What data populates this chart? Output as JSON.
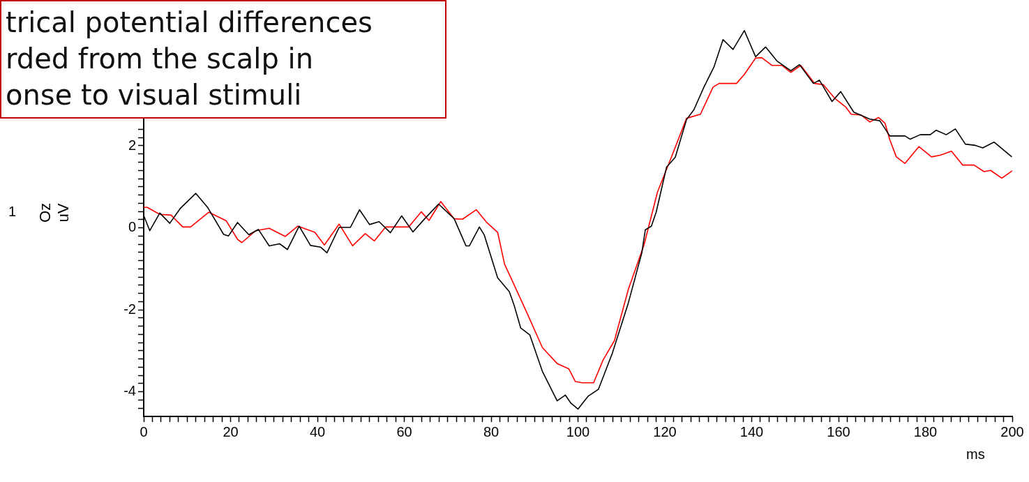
{
  "chart_data": {
    "type": "line",
    "xlabel": "ms",
    "ylabel": "Oz\nuV",
    "annotations": [
      "trical potential differences\nrded from the scalp in\nonse to visual stimuli",
      "1"
    ],
    "xlim": [
      0,
      200
    ],
    "ylim": [
      -4.6,
      5.3
    ],
    "grid": false,
    "legend": false,
    "marker": "none",
    "xticks": [
      0,
      {
        "value": 2,
        "label": null
      },
      {
        "value": 4,
        "label": null
      },
      {
        "value": 6,
        "label": null
      },
      {
        "value": 8,
        "label": null
      },
      {
        "value": 10,
        "label": null
      },
      {
        "value": 12,
        "label": null
      },
      {
        "value": 14,
        "label": null
      },
      {
        "value": 16,
        "label": null
      },
      {
        "value": 18,
        "label": null
      },
      20,
      {
        "value": 22,
        "label": null
      },
      {
        "value": 24,
        "label": null
      },
      {
        "value": 26,
        "label": null
      },
      {
        "value": 28,
        "label": null
      },
      {
        "value": 30,
        "label": null
      },
      {
        "value": 32,
        "label": null
      },
      {
        "value": 34,
        "label": null
      },
      {
        "value": 36,
        "label": null
      },
      {
        "value": 38,
        "label": null
      },
      40,
      {
        "value": 42,
        "label": null
      },
      {
        "value": 44,
        "label": null
      },
      {
        "value": 46,
        "label": null
      },
      {
        "value": 48,
        "label": null
      },
      {
        "value": 50,
        "label": null
      },
      {
        "value": 52,
        "label": null
      },
      {
        "value": 54,
        "label": null
      },
      {
        "value": 56,
        "label": null
      },
      {
        "value": 58,
        "label": null
      },
      60,
      {
        "value": 62,
        "label": null
      },
      {
        "value": 64,
        "label": null
      },
      {
        "value": 66,
        "label": null
      },
      {
        "value": 68,
        "label": null
      },
      {
        "value": 70,
        "label": null
      },
      {
        "value": 72,
        "label": null
      },
      {
        "value": 74,
        "label": null
      },
      {
        "value": 76,
        "label": null
      },
      {
        "value": 78,
        "label": null
      },
      80,
      {
        "value": 82,
        "label": null
      },
      {
        "value": 84,
        "label": null
      },
      {
        "value": 86,
        "label": null
      },
      {
        "value": 88,
        "label": null
      },
      {
        "value": 90,
        "label": null
      },
      {
        "value": 92,
        "label": null
      },
      {
        "value": 94,
        "label": null
      },
      {
        "value": 96,
        "label": null
      },
      {
        "value": 98,
        "label": null
      },
      100,
      {
        "value": 102,
        "label": null
      },
      {
        "value": 104,
        "label": null
      },
      {
        "value": 106,
        "label": null
      },
      {
        "value": 108,
        "label": null
      },
      {
        "value": 110,
        "label": null
      },
      {
        "value": 112,
        "label": null
      },
      {
        "value": 114,
        "label": null
      },
      {
        "value": 116,
        "label": null
      },
      {
        "value": 118,
        "label": null
      },
      120,
      {
        "value": 122,
        "label": null
      },
      {
        "value": 124,
        "label": null
      },
      {
        "value": 126,
        "label": null
      },
      {
        "value": 128,
        "label": null
      },
      {
        "value": 130,
        "label": null
      },
      {
        "value": 132,
        "label": null
      },
      {
        "value": 134,
        "label": null
      },
      {
        "value": 136,
        "label": null
      },
      {
        "value": 138,
        "label": null
      },
      140,
      {
        "value": 142,
        "label": null
      },
      {
        "value": 144,
        "label": null
      },
      {
        "value": 146,
        "label": null
      },
      {
        "value": 148,
        "label": null
      },
      {
        "value": 150,
        "label": null
      },
      {
        "value": 152,
        "label": null
      },
      {
        "value": 154,
        "label": null
      },
      {
        "value": 156,
        "label": null
      },
      {
        "value": 158,
        "label": null
      },
      160,
      {
        "value": 162,
        "label": null
      },
      {
        "value": 164,
        "label": null
      },
      {
        "value": 166,
        "label": null
      },
      {
        "value": 168,
        "label": null
      },
      {
        "value": 170,
        "label": null
      },
      {
        "value": 172,
        "label": null
      },
      {
        "value": 174,
        "label": null
      },
      {
        "value": 176,
        "label": null
      },
      {
        "value": 178,
        "label": null
      },
      180,
      {
        "value": 182,
        "label": null
      },
      {
        "value": 184,
        "label": null
      },
      {
        "value": 186,
        "label": null
      },
      {
        "value": 188,
        "label": null
      },
      {
        "value": 190,
        "label": null
      },
      {
        "value": 192,
        "label": null
      },
      {
        "value": 194,
        "label": null
      },
      {
        "value": 196,
        "label": null
      },
      {
        "value": 198,
        "label": null
      },
      200
    ],
    "yticks": [
      {
        "value": -4.4,
        "label": null
      },
      {
        "value": -4.2,
        "label": null
      },
      -4,
      {
        "value": -3.8,
        "label": null
      },
      {
        "value": -3.6,
        "label": null
      },
      {
        "value": -3.4,
        "label": null
      },
      {
        "value": -3.2,
        "label": null
      },
      {
        "value": -3,
        "label": null
      },
      {
        "value": -2.8,
        "label": null
      },
      {
        "value": -2.6,
        "label": null
      },
      {
        "value": -2.4,
        "label": null
      },
      {
        "value": -2.2,
        "label": null
      },
      -2,
      {
        "value": -1.8,
        "label": null
      },
      {
        "value": -1.6,
        "label": null
      },
      {
        "value": -1.4,
        "label": null
      },
      {
        "value": -1.2,
        "label": null
      },
      {
        "value": -1,
        "label": null
      },
      {
        "value": -0.8,
        "label": null
      },
      {
        "value": -0.6,
        "label": null
      },
      {
        "value": -0.4,
        "label": null
      },
      {
        "value": -0.2,
        "label": null
      },
      0,
      {
        "value": 0.2,
        "label": null
      },
      {
        "value": 0.4,
        "label": null
      },
      {
        "value": 0.6,
        "label": null
      },
      {
        "value": 0.8,
        "label": null
      },
      {
        "value": 1,
        "label": null
      },
      {
        "value": 1.2,
        "label": null
      },
      {
        "value": 1.4,
        "label": null
      },
      {
        "value": 1.6,
        "label": null
      },
      {
        "value": 1.8,
        "label": null
      },
      2,
      {
        "value": 2.2,
        "label": null
      },
      {
        "value": 2.4,
        "label": null
      }
    ],
    "series": [
      {
        "color": "#000000",
        "x": [
          0,
          1.4,
          3.7,
          6,
          8.4,
          12,
          14.7,
          18.4,
          19.5,
          21.6,
          24.2,
          26.4,
          28.9,
          31.3,
          33.1,
          35.8,
          38.4,
          40.7,
          42.2,
          45,
          47.6,
          49.7,
          52,
          54.2,
          56.8,
          59.4,
          62,
          64.7,
          67.9,
          71.5,
          74.2,
          75,
          77.3,
          78.4,
          81.5,
          84.2,
          85.3,
          86.8,
          88.9,
          91.8,
          95.2,
          97.1,
          98.4,
          100,
          102.3,
          104.7,
          107.9,
          111.6,
          114.7,
          115.5,
          116.9,
          118,
          120.4,
          122.4,
          125,
          126.7,
          129,
          131.3,
          133.4,
          135.7,
          138.3,
          140.9,
          143.2,
          145.8,
          149,
          151,
          154.2,
          155.6,
          158.5,
          160.5,
          163.5,
          167.2,
          169.5,
          171.8,
          175.3,
          176.5,
          178.8,
          181.1,
          182.5,
          184.8,
          186.9,
          189.2,
          191.5,
          193.2,
          195.8,
          199.9
        ],
        "values": [
          0.3,
          -0.07,
          0.36,
          0.11,
          0.47,
          0.84,
          0.5,
          -0.16,
          -0.2,
          0.13,
          -0.17,
          -0.04,
          -0.44,
          -0.39,
          -0.53,
          0.04,
          -0.43,
          -0.47,
          -0.61,
          0.01,
          0.01,
          0.44,
          0.08,
          0.15,
          -0.12,
          0.29,
          -0.1,
          0.22,
          0.58,
          0.22,
          -0.44,
          -0.44,
          0.02,
          -0.17,
          -1.22,
          -1.56,
          -1.89,
          -2.44,
          -2.61,
          -3.5,
          -4.22,
          -4.08,
          -4.28,
          -4.42,
          -4.11,
          -3.94,
          -3.06,
          -1.83,
          -0.61,
          -0.05,
          0.04,
          0.38,
          1.48,
          1.72,
          2.64,
          2.88,
          3.43,
          3.92,
          4.59,
          4.35,
          4.81,
          4.17,
          4.41,
          4.07,
          3.83,
          3.98,
          3.52,
          3.6,
          3.08,
          3.32,
          2.82,
          2.65,
          2.61,
          2.24,
          2.24,
          2.16,
          2.27,
          2.27,
          2.38,
          2.27,
          2.41,
          2.04,
          2.01,
          1.95,
          2.09,
          1.73
        ]
      },
      {
        "color": "#ff0000",
        "x": [
          0,
          0.8,
          3.7,
          6.3,
          9,
          10.8,
          15,
          19,
          21.6,
          22.6,
          25.8,
          28.9,
          32.6,
          35.5,
          39.4,
          41.6,
          45,
          48.1,
          51,
          53.1,
          55.7,
          61,
          63.9,
          65.7,
          68.4,
          71.5,
          73.4,
          76.6,
          78.9,
          81.5,
          83.1,
          85.3,
          88.4,
          91.8,
          95.2,
          97.9,
          99.4,
          101,
          103.6,
          105.8,
          108.4,
          111.6,
          115.2,
          118.3,
          121.5,
          125,
          128.2,
          131.1,
          132.5,
          136.5,
          138.3,
          140.9,
          142.3,
          144.7,
          147,
          149,
          151.3,
          154.5,
          156.5,
          159.1,
          161.7,
          162.9,
          165.2,
          167.2,
          169.2,
          170.7,
          171.8,
          173.3,
          175.3,
          178.5,
          181.4,
          183.4,
          186,
          188.6,
          191.2,
          193.5,
          195,
          197.6,
          200
        ],
        "values": [
          0.5,
          0.5,
          0.33,
          0.31,
          0.02,
          0.02,
          0.38,
          0.17,
          -0.28,
          -0.36,
          -0.07,
          -0.01,
          -0.21,
          0.04,
          -0.11,
          -0.42,
          0.09,
          -0.44,
          -0.14,
          -0.32,
          0.02,
          0.02,
          0.39,
          0.18,
          0.64,
          0.22,
          0.21,
          0.44,
          0.14,
          -0.11,
          -0.89,
          -1.39,
          -2.11,
          -2.92,
          -3.31,
          -3.44,
          -3.75,
          -3.78,
          -3.78,
          -3.22,
          -2.75,
          -1.5,
          -0.42,
          0.87,
          1.72,
          2.67,
          2.77,
          3.43,
          3.52,
          3.52,
          3.74,
          4.14,
          4.15,
          3.96,
          3.96,
          3.79,
          3.96,
          3.52,
          3.49,
          3.16,
          2.94,
          2.77,
          2.75,
          2.58,
          2.69,
          2.55,
          2.15,
          1.73,
          1.57,
          1.98,
          1.73,
          1.77,
          1.87,
          1.53,
          1.53,
          1.37,
          1.4,
          1.21,
          1.39
        ]
      }
    ]
  }
}
